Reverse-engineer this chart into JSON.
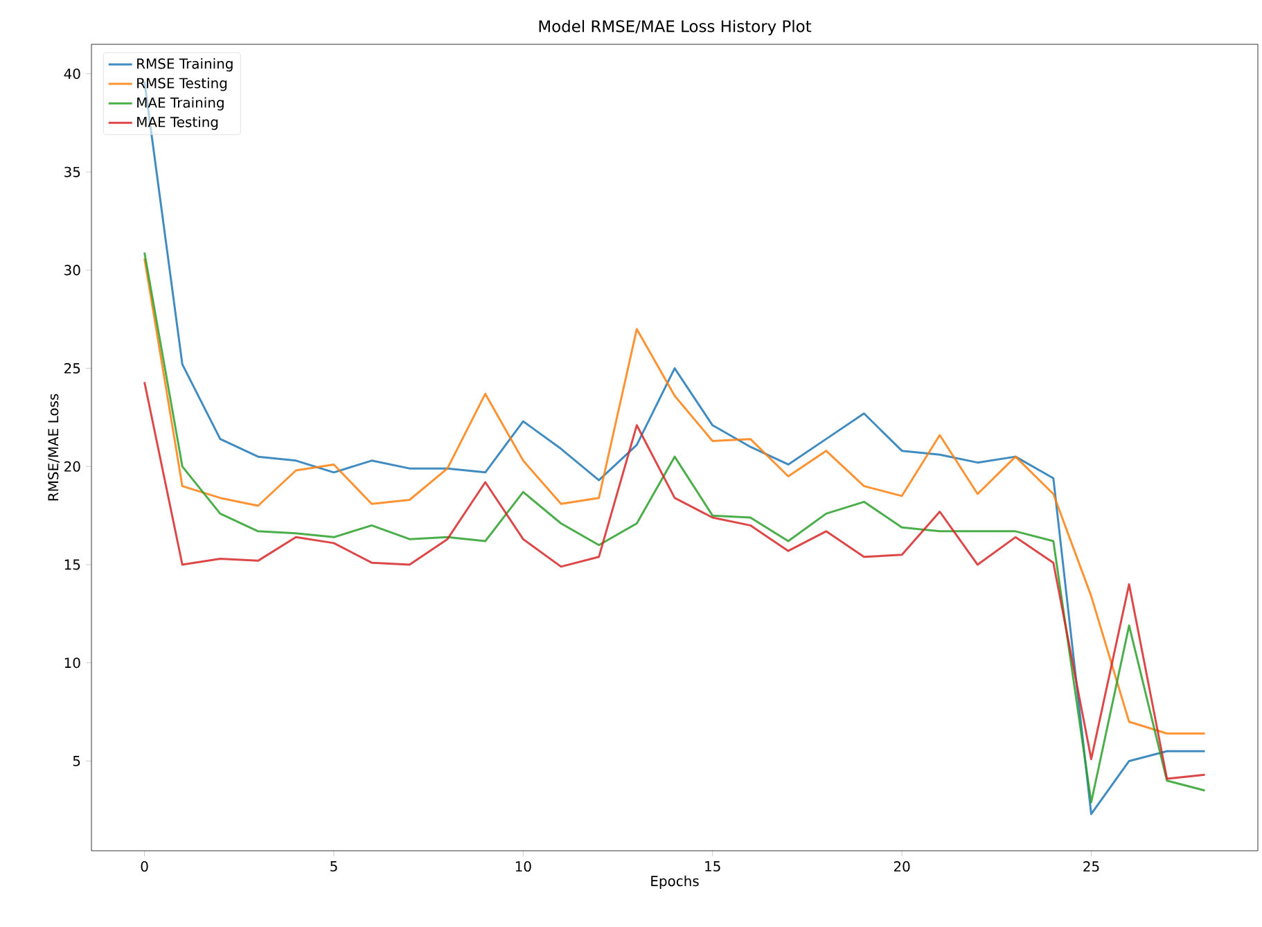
{
  "chart_data": {
    "type": "line",
    "title": "Model RMSE/MAE Loss History Plot",
    "xlabel": "Epochs",
    "ylabel": "RMSE/MAE Loss",
    "x": [
      0,
      1,
      2,
      3,
      4,
      5,
      6,
      7,
      8,
      9,
      10,
      11,
      12,
      13,
      14,
      15,
      16,
      17,
      18,
      19,
      20,
      21,
      22,
      23,
      24,
      25,
      26,
      27,
      28
    ],
    "series": [
      {
        "name": "RMSE Training",
        "color": "#1f77b4",
        "values": [
          39.6,
          25.2,
          21.4,
          20.5,
          20.3,
          19.7,
          20.3,
          19.9,
          19.9,
          19.7,
          22.3,
          20.9,
          19.3,
          21.1,
          25.0,
          22.1,
          21.0,
          20.1,
          21.4,
          22.7,
          20.8,
          20.6,
          20.2,
          20.5,
          19.4,
          2.3,
          5.0,
          5.5,
          5.5
        ]
      },
      {
        "name": "RMSE Testing",
        "color": "#ff7f0e",
        "values": [
          30.6,
          19.0,
          18.4,
          18.0,
          19.8,
          20.1,
          18.1,
          18.3,
          19.9,
          23.7,
          20.3,
          18.1,
          18.4,
          27.0,
          23.6,
          21.3,
          21.4,
          19.5,
          20.8,
          19.0,
          18.5,
          21.6,
          18.6,
          20.5,
          18.6,
          13.4,
          7.0,
          6.4,
          6.4
        ]
      },
      {
        "name": "MAE Training",
        "color": "#2ca02c",
        "values": [
          30.9,
          20.0,
          17.6,
          16.7,
          16.6,
          16.4,
          17.0,
          16.3,
          16.4,
          16.2,
          18.7,
          17.1,
          16.0,
          17.1,
          20.5,
          17.5,
          17.4,
          16.2,
          17.6,
          18.2,
          16.9,
          16.7,
          16.7,
          16.7,
          16.2,
          2.9,
          11.9,
          4.0,
          3.5
        ]
      },
      {
        "name": "MAE Testing",
        "color": "#d62728",
        "values": [
          24.3,
          15.0,
          15.3,
          15.2,
          16.4,
          16.1,
          15.1,
          15.0,
          16.3,
          19.2,
          16.3,
          14.9,
          15.4,
          22.1,
          18.4,
          17.4,
          17.0,
          15.7,
          16.7,
          15.4,
          15.5,
          17.7,
          15.0,
          16.4,
          15.1,
          5.1,
          14.0,
          4.1,
          4.3
        ]
      }
    ],
    "xlim": [
      -1.4,
      29.4
    ],
    "ylim": [
      0.43,
      41.5
    ],
    "xticks": [
      0,
      5,
      10,
      15,
      20,
      25
    ],
    "yticks": [
      5,
      10,
      15,
      20,
      25,
      30,
      35,
      40
    ],
    "legend": "top left",
    "grid": false,
    "marker": "none",
    "line_style": "solid"
  }
}
